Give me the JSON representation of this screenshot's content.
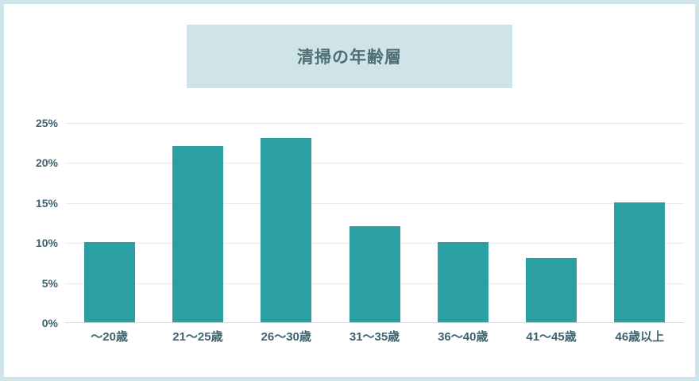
{
  "colors": {
    "frame_and_title_box": "#cee4e8",
    "bar": "#2aa0a4",
    "axis_text": "#3f626d",
    "title_text": "#4e6e74",
    "gridline": "#e9ebeb",
    "baseline": "#d5dcdd",
    "background": "#ffffff"
  },
  "chart_data": {
    "type": "bar",
    "title": "清掃の年齢層",
    "categories": [
      "〜20歳",
      "21〜25歳",
      "26〜30歳",
      "31〜35歳",
      "36〜40歳",
      "41〜45歳",
      "46歳以上"
    ],
    "values": [
      10,
      22,
      23,
      12,
      10,
      8,
      15
    ],
    "value_unit": "%",
    "xlabel": "",
    "ylabel": "",
    "ylim": [
      0,
      25
    ],
    "yticks": [
      0,
      5,
      10,
      15,
      20,
      25
    ],
    "ytick_labels": [
      "0%",
      "5%",
      "10%",
      "15%",
      "20%",
      "25%"
    ],
    "grid": "horizontal",
    "legend": "none"
  }
}
